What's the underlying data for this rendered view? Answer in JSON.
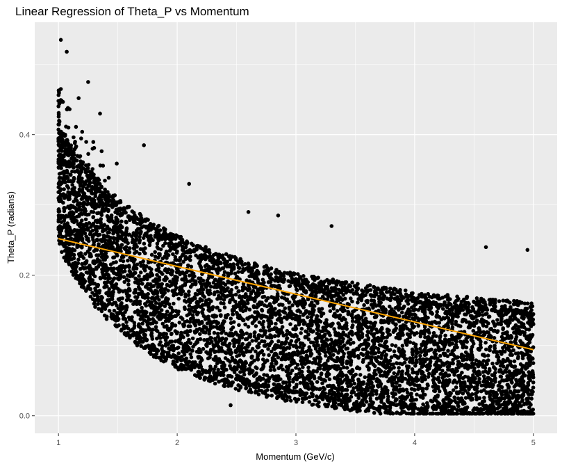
{
  "chart_data": {
    "type": "scatter",
    "title": "Linear Regression of Theta_P vs Momentum",
    "xlabel": "Momentum (GeV/c)",
    "ylabel": "Theta_P (radians)",
    "xlim": [
      0.8,
      5.2
    ],
    "ylim": [
      -0.025,
      0.56
    ],
    "x_ticks": [
      1,
      2,
      3,
      4,
      5
    ],
    "y_ticks": [
      0.0,
      0.2,
      0.4
    ],
    "x_tick_labels": [
      "1",
      "2",
      "3",
      "4",
      "5"
    ],
    "y_tick_labels": [
      "0.0",
      "0.2",
      "0.4"
    ],
    "grid": true,
    "legend": "none",
    "colors": {
      "panel": "#ebebeb",
      "grid": "#ffffff",
      "points": "#000000",
      "fit_line": "#ffa500"
    },
    "series": [
      {
        "kind": "points",
        "x_range": [
          1.0,
          5.0
        ],
        "distribution": "dense band bounded approximately by 0.085 + 0.32/x (upper) and max(0.005, 0.29/x^1.35 - 0.035) (lower)",
        "outliers": [
          {
            "x": 1.02,
            "y": 0.535
          },
          {
            "x": 1.07,
            "y": 0.518
          },
          {
            "x": 1.02,
            "y": 0.465
          },
          {
            "x": 1.25,
            "y": 0.475
          },
          {
            "x": 1.17,
            "y": 0.452
          },
          {
            "x": 1.0,
            "y": 0.448
          },
          {
            "x": 1.35,
            "y": 0.43
          },
          {
            "x": 1.72,
            "y": 0.385
          },
          {
            "x": 2.1,
            "y": 0.33
          },
          {
            "x": 2.6,
            "y": 0.29
          },
          {
            "x": 2.85,
            "y": 0.285
          },
          {
            "x": 3.3,
            "y": 0.27
          },
          {
            "x": 4.6,
            "y": 0.24
          },
          {
            "x": 4.95,
            "y": 0.236
          },
          {
            "x": 2.45,
            "y": 0.015
          },
          {
            "x": 3.9,
            "y": 0.005
          },
          {
            "x": 4.6,
            "y": 0.004
          }
        ]
      },
      {
        "kind": "fit_line",
        "x": [
          1.0,
          5.0
        ],
        "y": [
          0.252,
          0.094
        ]
      }
    ]
  }
}
